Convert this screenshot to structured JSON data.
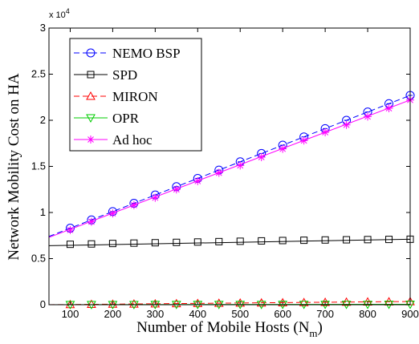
{
  "chart_data": {
    "type": "line",
    "title": "",
    "xlabel": "Number of Mobile Hosts (N",
    "xlabel_subscript": "m",
    "xlabel_suffix": ")",
    "ylabel": "Network Mobility Cost on HA",
    "y_multiplier": "x 10",
    "y_multiplier_exp": "4",
    "xlim": [
      50,
      900
    ],
    "ylim": [
      0,
      3
    ],
    "xticks": [
      "100",
      "200",
      "300",
      "400",
      "500",
      "600",
      "700",
      "800",
      "900"
    ],
    "yticks": [
      "0",
      "0.5",
      "1",
      "1.5",
      "2",
      "2.5",
      "3"
    ],
    "legend_position": "top-left",
    "marker_x": [
      100,
      150,
      200,
      250,
      300,
      350,
      400,
      450,
      500,
      550,
      600,
      650,
      700,
      750,
      800,
      850,
      900
    ],
    "series": [
      {
        "name": "NEMO BSP",
        "color": "#0000ff",
        "dash": "dashed",
        "marker": "circle",
        "line_x": [
          50,
          900
        ],
        "line_y": [
          0.74,
          2.27
        ],
        "marker_y": [
          0.83,
          0.92,
          1.01,
          1.1,
          1.19,
          1.28,
          1.37,
          1.46,
          1.55,
          1.64,
          1.73,
          1.82,
          1.91,
          2.0,
          2.09,
          2.18,
          2.27
        ]
      },
      {
        "name": "SPD",
        "color": "#000000",
        "dash": "solid",
        "marker": "square",
        "line_x": [
          50,
          900
        ],
        "line_y": [
          0.64,
          0.71
        ],
        "marker_y": [
          0.655,
          0.659,
          0.664,
          0.668,
          0.672,
          0.676,
          0.68,
          0.684,
          0.688,
          0.692,
          0.696,
          0.699,
          0.702,
          0.704,
          0.706,
          0.708,
          0.71
        ]
      },
      {
        "name": "MIRON",
        "color": "#ff0000",
        "dash": "dashed",
        "marker": "triangle-up",
        "line_x": [
          50,
          900
        ],
        "line_y": [
          0.0,
          0.035
        ],
        "marker_y": [
          0.002,
          0.004,
          0.006,
          0.008,
          0.01,
          0.012,
          0.014,
          0.016,
          0.018,
          0.02,
          0.022,
          0.024,
          0.026,
          0.028,
          0.03,
          0.032,
          0.034
        ]
      },
      {
        "name": "OPR",
        "color": "#00cc00",
        "dash": "solid",
        "marker": "triangle-down",
        "line_x": [
          50,
          900
        ],
        "line_y": [
          0.0,
          0.004
        ],
        "marker_y": [
          0.001,
          0.001,
          0.001,
          0.001,
          0.002,
          0.002,
          0.002,
          0.002,
          0.002,
          0.002,
          0.003,
          0.003,
          0.003,
          0.003,
          0.003,
          0.004,
          0.004
        ]
      },
      {
        "name": "Ad hoc",
        "color": "#ff00ff",
        "dash": "solid",
        "marker": "star",
        "line_x": [
          50,
          900
        ],
        "line_y": [
          0.73,
          2.22
        ],
        "marker_y": [
          0.81,
          0.9,
          0.99,
          1.08,
          1.16,
          1.25,
          1.34,
          1.43,
          1.51,
          1.6,
          1.69,
          1.78,
          1.87,
          1.95,
          2.04,
          2.13,
          2.22
        ]
      }
    ]
  }
}
